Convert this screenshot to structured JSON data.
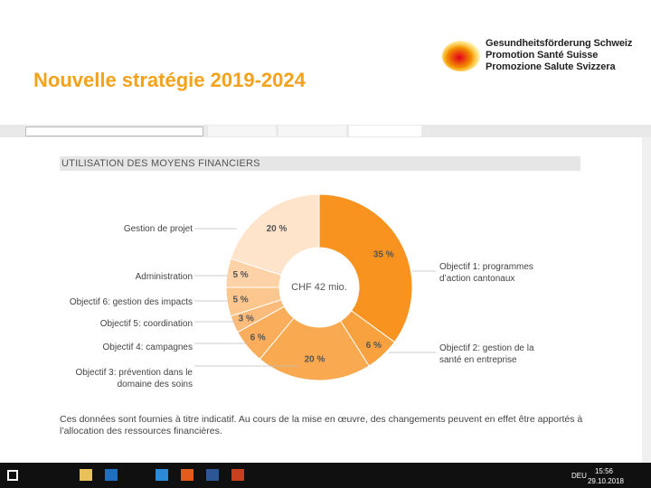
{
  "slide_title": "Nouvelle stratégie 2019-2024",
  "logo": [
    "Gesundheitsförderung Schweiz",
    "Promotion Santé Suisse",
    "Promozione Salute Svizzera"
  ],
  "chart_data": {
    "type": "pie",
    "title": "UTILISATION DES MOYENS FINANCIERS",
    "center_label": "CHF 42 mio.",
    "categories": [
      "Objectif 1: programmes d’action cantonaux",
      "Objectif 2: gestion de la santé en entreprise",
      "Objectif 3: prévention dans le domaine des soins",
      "Objectif 4: campagnes",
      "Objectif 5: coordination",
      "Objectif 6: gestion des impacts",
      "Administration",
      "Gestion de projet"
    ],
    "values": [
      35,
      6,
      20,
      6,
      3,
      5,
      5,
      20
    ],
    "value_labels": [
      "35 %",
      "6 %",
      "20 %",
      "6 %",
      "3 %",
      "5 %",
      "5 %",
      "20 %"
    ],
    "colors": [
      "#f7931e",
      "#f8a23f",
      "#f9a94f",
      "#faad5a",
      "#fbbc7b",
      "#fcc68f",
      "#fdd2a6",
      "#fde4cb"
    ],
    "note": "Ces données sont fournies à titre indicatif. Au cours de la mise en œuvre, des changements peuvent en effet être apportés à l’allocation des ressources financières."
  },
  "taskbar": {
    "language": "DEU",
    "time": "15:56",
    "date": "29.10.2018"
  }
}
